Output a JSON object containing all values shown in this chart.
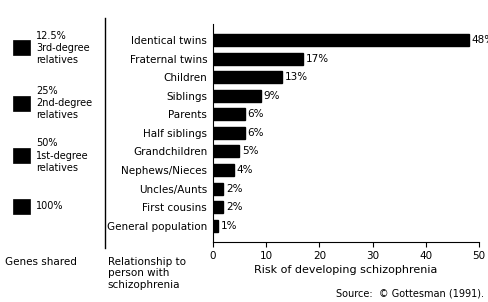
{
  "categories": [
    "General population",
    "First cousins",
    "Uncles/Aunts",
    "Nephews/Nieces",
    "Grandchildren",
    "Half siblings",
    "Parents",
    "Siblings",
    "Children",
    "Fraternal twins",
    "Identical twins"
  ],
  "values": [
    1,
    2,
    2,
    4,
    5,
    6,
    6,
    9,
    13,
    17,
    48
  ],
  "bar_color": "#000000",
  "xlim": [
    0,
    50
  ],
  "xticks": [
    0,
    10,
    20,
    30,
    40,
    50
  ],
  "xlabel": "Risk of developing schizophrenia",
  "label_genes_shared": "Genes shared",
  "label_relationship": "Relationship to\nperson with\nschizophrenia",
  "source_text": "Source:  © Gottesman (1991).",
  "legend_items": [
    {
      "label": "12.5%\n3rd-degree\nrelatives",
      "color": "#000000"
    },
    {
      "label": "25%\n2nd-degree\nrelatives",
      "color": "#000000"
    },
    {
      "label": "50%\n1st-degree\nrelatives",
      "color": "#000000"
    },
    {
      "label": "100%",
      "color": "#000000"
    }
  ],
  "background_color": "#ffffff",
  "font_size_labels": 7.5,
  "font_size_ticks": 7.5,
  "font_size_xlabel": 8,
  "font_size_source": 7,
  "font_size_legend": 7
}
